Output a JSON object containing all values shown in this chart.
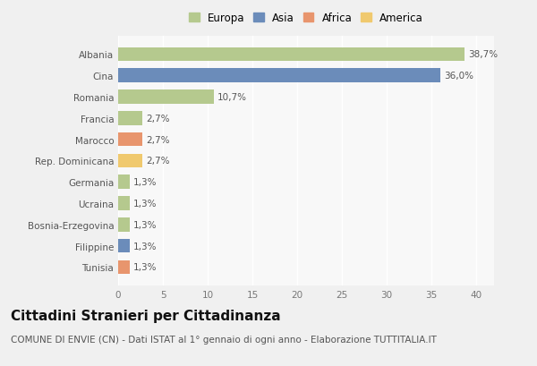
{
  "categories": [
    "Albania",
    "Cina",
    "Romania",
    "Francia",
    "Marocco",
    "Rep. Dominicana",
    "Germania",
    "Ucraina",
    "Bosnia-Erzegovina",
    "Filippine",
    "Tunisia"
  ],
  "values": [
    38.7,
    36.0,
    10.7,
    2.7,
    2.7,
    2.7,
    1.3,
    1.3,
    1.3,
    1.3,
    1.3
  ],
  "labels": [
    "38,7%",
    "36,0%",
    "10,7%",
    "2,7%",
    "2,7%",
    "2,7%",
    "1,3%",
    "1,3%",
    "1,3%",
    "1,3%",
    "1,3%"
  ],
  "colors": [
    "#b5c98e",
    "#6b8cba",
    "#b5c98e",
    "#b5c98e",
    "#e8956d",
    "#f0c96e",
    "#b5c98e",
    "#b5c98e",
    "#b5c98e",
    "#6b8cba",
    "#e8956d"
  ],
  "legend_labels": [
    "Europa",
    "Asia",
    "Africa",
    "America"
  ],
  "legend_colors": [
    "#b5c98e",
    "#6b8cba",
    "#e8956d",
    "#f0c96e"
  ],
  "xlim": [
    0,
    42
  ],
  "xticks": [
    0,
    5,
    10,
    15,
    20,
    25,
    30,
    35,
    40
  ],
  "title": "Cittadini Stranieri per Cittadinanza",
  "subtitle": "COMUNE DI ENVIE (CN) - Dati ISTAT al 1° gennaio di ogni anno - Elaborazione TUTTITALIA.IT",
  "bg_color": "#f0f0f0",
  "plot_bg_color": "#f8f8f8",
  "grid_color": "#ffffff",
  "bar_height": 0.65,
  "title_fontsize": 11,
  "subtitle_fontsize": 7.5,
  "label_fontsize": 7.5,
  "tick_fontsize": 7.5,
  "legend_fontsize": 8.5
}
